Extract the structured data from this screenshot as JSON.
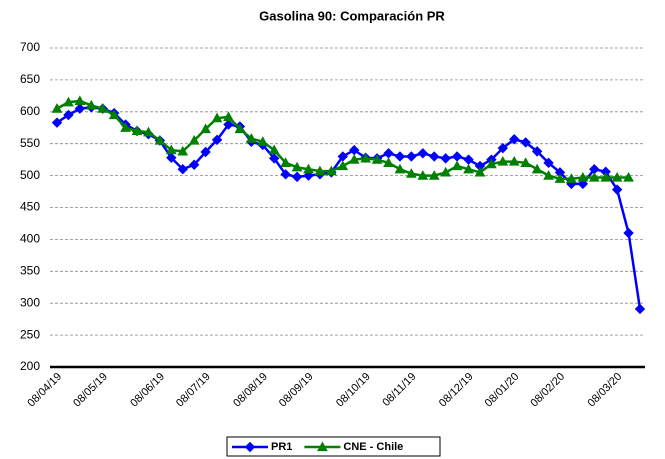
{
  "chart_data": {
    "type": "line",
    "title": "Gasolina 90: Comparación PR",
    "categories": [
      "08/04/19",
      null,
      null,
      null,
      "08/05/19",
      null,
      null,
      null,
      null,
      "08/06/19",
      null,
      null,
      null,
      "08/07/19",
      null,
      null,
      null,
      null,
      "08/08/19",
      null,
      null,
      null,
      "08/09/19",
      null,
      null,
      null,
      null,
      "08/10/19",
      null,
      null,
      null,
      "08/11/19",
      null,
      null,
      null,
      null,
      "08/12/19",
      null,
      null,
      null,
      "08/01/20",
      null,
      null,
      null,
      "08/02/20",
      null,
      null,
      null,
      null,
      "08/03/20",
      null,
      null
    ],
    "series": [
      {
        "name": "PR1",
        "color": "#0000ff",
        "marker": "diamond",
        "values": [
          583,
          595,
          605,
          607,
          605,
          598,
          580,
          570,
          565,
          555,
          528,
          510,
          517,
          537,
          556,
          580,
          577,
          553,
          548,
          527,
          502,
          498,
          500,
          502,
          505,
          530,
          540,
          528,
          527,
          535,
          530,
          530,
          535,
          530,
          527,
          530,
          525,
          515,
          525,
          543,
          557,
          552,
          538,
          520,
          505,
          487,
          487,
          510,
          506,
          478,
          410,
          291
        ]
      },
      {
        "name": "CNE - Chile",
        "color": "#008000",
        "marker": "triangle",
        "values": [
          605,
          615,
          617,
          610,
          605,
          595,
          575,
          570,
          568,
          555,
          540,
          538,
          555,
          573,
          590,
          592,
          573,
          558,
          553,
          540,
          520,
          513,
          510,
          507,
          507,
          515,
          525,
          527,
          525,
          520,
          510,
          503,
          500,
          500,
          505,
          515,
          510,
          505,
          518,
          522,
          522,
          520,
          510,
          500,
          495,
          495,
          497,
          497,
          497,
          497,
          497,
          null
        ]
      }
    ],
    "ylim": [
      200,
      700
    ],
    "yticks": [
      200,
      250,
      300,
      350,
      400,
      450,
      500,
      550,
      600,
      650,
      700
    ],
    "grid": true,
    "legend": "bottom"
  }
}
